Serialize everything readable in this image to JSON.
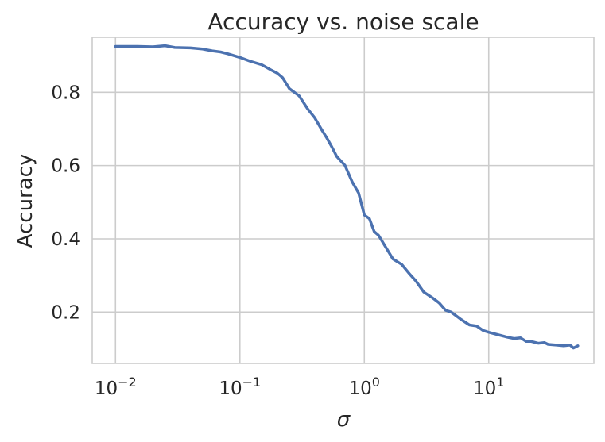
{
  "chart_data": {
    "type": "line",
    "title": "Accuracy vs. noise scale",
    "xlabel": "σ",
    "ylabel": "Accuracy",
    "xscale": "log",
    "xlim": [
      0.0065,
      70
    ],
    "ylim": [
      0.06,
      0.95
    ],
    "grid": true,
    "x_ticks": [
      {
        "value": 0.01,
        "base": "10",
        "exp": "−2"
      },
      {
        "value": 0.1,
        "base": "10",
        "exp": "−1"
      },
      {
        "value": 1,
        "base": "10",
        "exp": "0"
      },
      {
        "value": 10,
        "base": "10",
        "exp": "1"
      }
    ],
    "y_ticks": [
      {
        "value": 0.2,
        "label": "0.2"
      },
      {
        "value": 0.4,
        "label": "0.4"
      },
      {
        "value": 0.6,
        "label": "0.6"
      },
      {
        "value": 0.8,
        "label": "0.8"
      }
    ],
    "series": [
      {
        "color": "#4c72b0",
        "x": [
          0.01,
          0.015,
          0.02,
          0.025,
          0.03,
          0.04,
          0.05,
          0.06,
          0.07,
          0.08,
          0.1,
          0.12,
          0.15,
          0.18,
          0.2,
          0.22,
          0.25,
          0.3,
          0.35,
          0.4,
          0.45,
          0.5,
          0.55,
          0.6,
          0.7,
          0.8,
          0.9,
          1.0,
          1.1,
          1.2,
          1.3,
          1.5,
          1.7,
          2.0,
          2.3,
          2.6,
          3.0,
          3.5,
          4.0,
          4.5,
          5.0,
          6.0,
          7.0,
          8.0,
          9.0,
          10,
          12,
          14,
          16,
          18,
          20,
          22,
          25,
          28,
          30,
          35,
          40,
          45,
          48,
          52
        ],
        "y": [
          0.925,
          0.925,
          0.924,
          0.927,
          0.922,
          0.921,
          0.918,
          0.913,
          0.91,
          0.905,
          0.895,
          0.885,
          0.875,
          0.86,
          0.852,
          0.84,
          0.81,
          0.79,
          0.755,
          0.73,
          0.7,
          0.675,
          0.65,
          0.625,
          0.6,
          0.555,
          0.525,
          0.465,
          0.455,
          0.42,
          0.41,
          0.375,
          0.345,
          0.33,
          0.305,
          0.285,
          0.255,
          0.24,
          0.225,
          0.205,
          0.2,
          0.18,
          0.165,
          0.162,
          0.15,
          0.145,
          0.138,
          0.132,
          0.128,
          0.13,
          0.12,
          0.12,
          0.115,
          0.117,
          0.112,
          0.11,
          0.108,
          0.11,
          0.102,
          0.108
        ]
      }
    ]
  }
}
